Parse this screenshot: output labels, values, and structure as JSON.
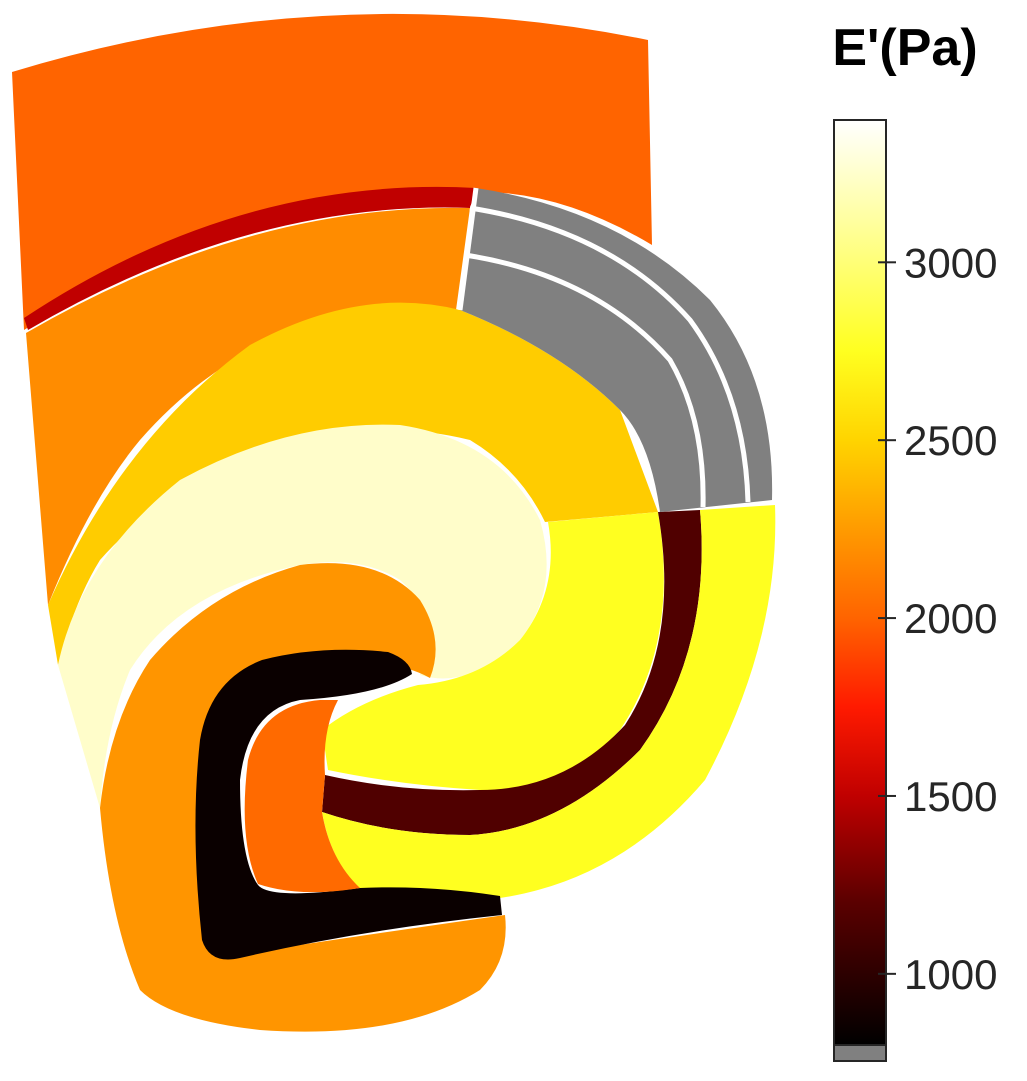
{
  "colorbar": {
    "title": "E'(Pa)",
    "colormap": "hot",
    "range": [
      800,
      3400
    ],
    "ticks": [
      1000,
      1500,
      2000,
      2500,
      3000
    ],
    "tick_labels": [
      "1000",
      "1500",
      "2000",
      "2500",
      "3000"
    ],
    "stops": [
      {
        "value": 800,
        "color": "#000000"
      },
      {
        "value": 1200,
        "color": "#5a0000"
      },
      {
        "value": 1500,
        "color": "#c00000"
      },
      {
        "value": 1750,
        "color": "#ff1a00"
      },
      {
        "value": 2000,
        "color": "#ff6400"
      },
      {
        "value": 2250,
        "color": "#ff9b00"
      },
      {
        "value": 2500,
        "color": "#ffd400"
      },
      {
        "value": 2750,
        "color": "#ffff20"
      },
      {
        "value": 3100,
        "color": "#ffff9a"
      },
      {
        "value": 3400,
        "color": "#ffffff"
      }
    ],
    "no_data_color": "#808080"
  },
  "chart_data": {
    "type": "heatmap",
    "description_units": "Pa",
    "colorbar_label": "E'(Pa)",
    "regions": [
      {
        "id": "top-band",
        "value": 2000,
        "color": "#ff6400"
      },
      {
        "id": "thin-upper-arc",
        "value": 1450,
        "color": "#c00000"
      },
      {
        "id": "upper-layer",
        "value": 2200,
        "color": "#ff8c00"
      },
      {
        "id": "mid-arc",
        "value": 2500,
        "color": "#ffcc00"
      },
      {
        "id": "pale-arc",
        "value": 3250,
        "color": "#fffdca"
      },
      {
        "id": "right-yellow-band",
        "value": 2800,
        "color": "#ffff20"
      },
      {
        "id": "dark-arc-right",
        "value": 1100,
        "color": "#500000"
      },
      {
        "id": "lower-yellow-band",
        "value": 2800,
        "color": "#ffff20"
      },
      {
        "id": "hook-outer",
        "value": 2250,
        "color": "#ff9500"
      },
      {
        "id": "hook-black",
        "value": 850,
        "color": "#0a0000"
      },
      {
        "id": "hook-core",
        "value": 2050,
        "color": "#ff6a00"
      },
      {
        "id": "gray-layers",
        "value": null,
        "color": "#808080"
      }
    ]
  }
}
